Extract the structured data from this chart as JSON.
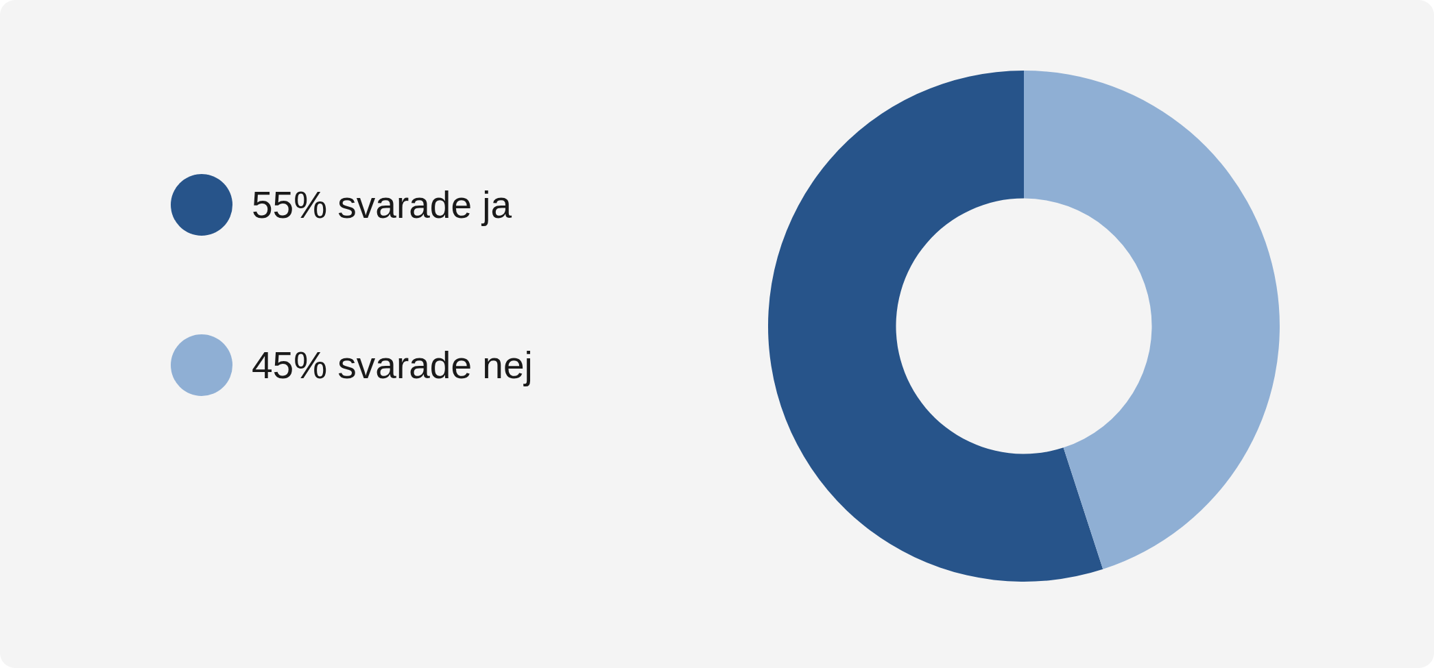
{
  "chart_data": {
    "type": "donut",
    "categories": [
      "55% svarade ja",
      "45% svarade nej"
    ],
    "values": [
      55,
      45
    ],
    "colors": [
      "#27548a",
      "#8fafd4"
    ],
    "legend": "left"
  }
}
